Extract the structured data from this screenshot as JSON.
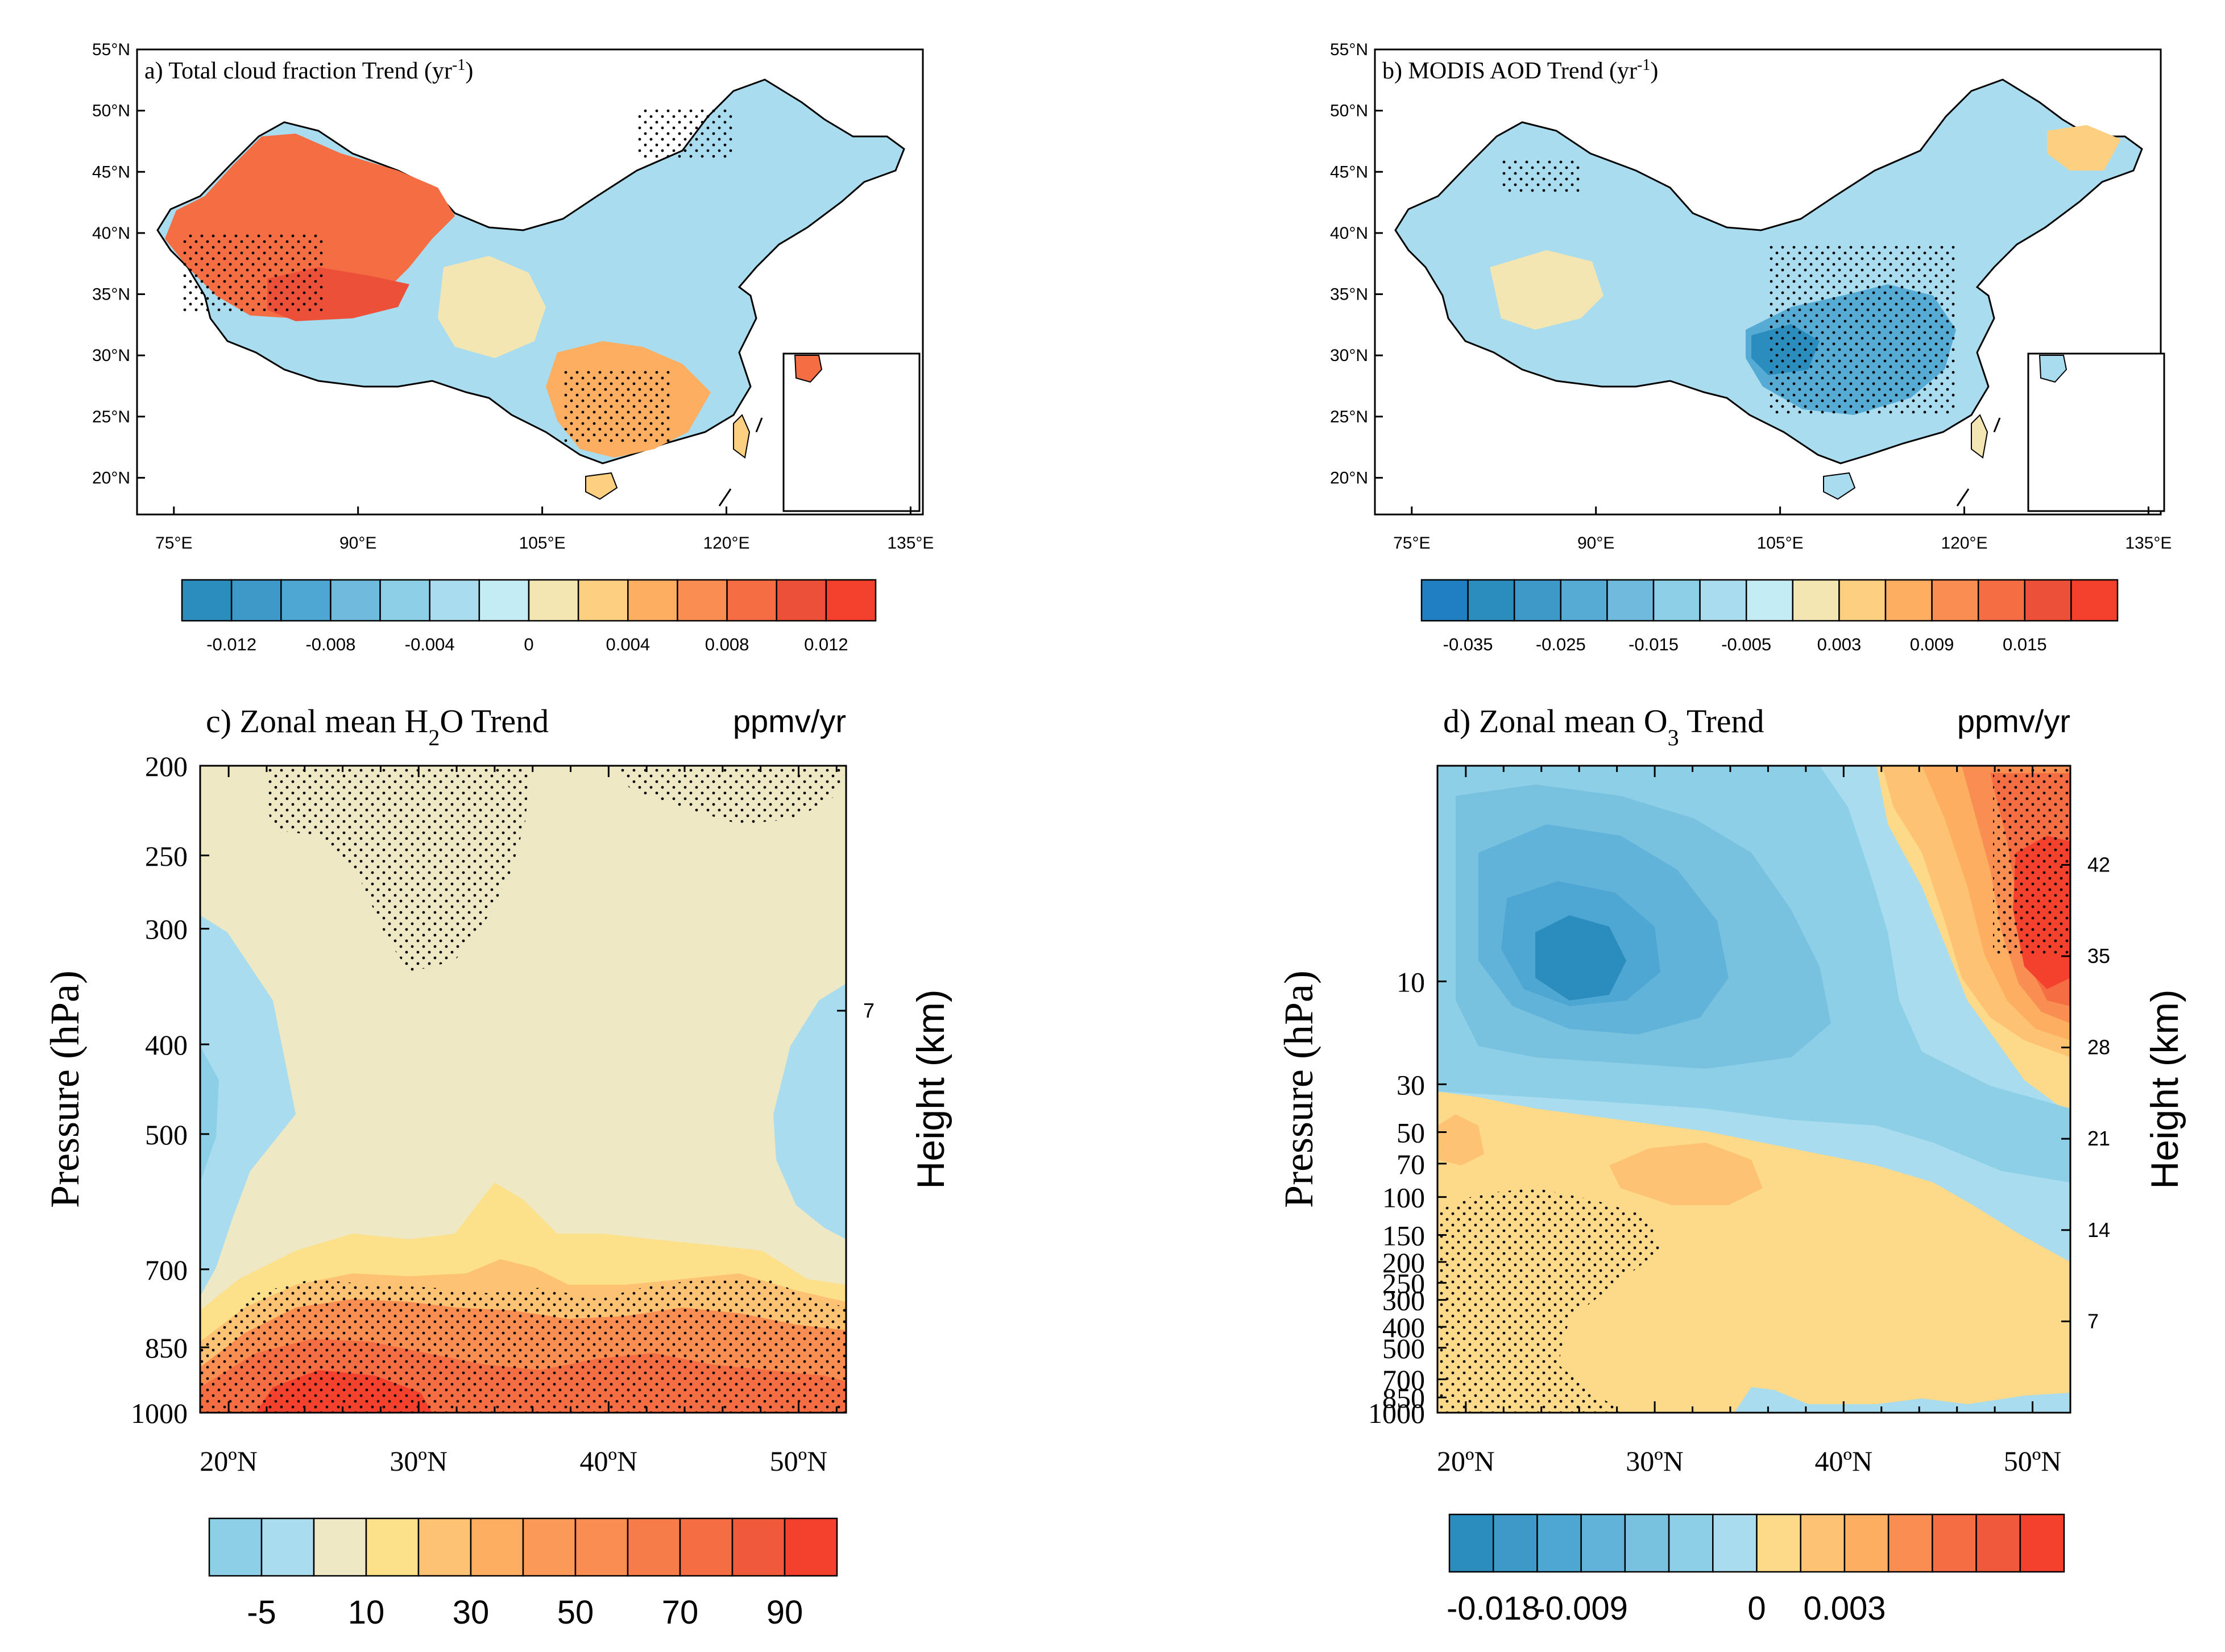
{
  "chart_data": [
    {
      "panel": "a",
      "type": "heatmap",
      "map": "China",
      "title": "a) Total cloud fraction Trend (yr",
      "title_sup": "-1",
      "title_end": ")",
      "x_ticks": [
        "75°E",
        "90°E",
        "105°E",
        "120°E",
        "135°E"
      ],
      "x_values": [
        75,
        90,
        105,
        120,
        135
      ],
      "y_ticks": [
        "55°N",
        "50°N",
        "45°N",
        "40°N",
        "35°N",
        "30°N",
        "25°N",
        "20°N"
      ],
      "y_values": [
        55,
        50,
        45,
        40,
        35,
        30,
        25,
        20
      ],
      "xlim": [
        72,
        136
      ],
      "ylim": [
        17,
        55
      ],
      "colorbar": {
        "colors": [
          "#2b8cbe",
          "#3c99c8",
          "#4ea7d2",
          "#70bbdd",
          "#8ccfe6",
          "#a8dcee",
          "#c4ecf4",
          "#f3e6b3",
          "#fdcf80",
          "#fdae61",
          "#f98e52",
          "#f46d43",
          "#ec5039",
          "#f4412d"
        ],
        "labels": [
          "-0.012",
          "-0.008",
          "-0.004",
          "0",
          "0.004",
          "0.008",
          "0.012"
        ],
        "boundaries": [
          -0.012,
          -0.01,
          -0.008,
          -0.006,
          -0.004,
          -0.002,
          0,
          0.002,
          0.004,
          0.006,
          0.008,
          0.01,
          0.012
        ]
      }
    },
    {
      "panel": "b",
      "type": "heatmap",
      "map": "China",
      "title": "b) MODIS AOD Trend (yr",
      "title_sup": "-1",
      "title_end": ")",
      "x_ticks": [
        "75°E",
        "90°E",
        "105°E",
        "120°E",
        "135°E"
      ],
      "x_values": [
        75,
        90,
        105,
        120,
        135
      ],
      "y_ticks": [
        "55°N",
        "50°N",
        "45°N",
        "40°N",
        "35°N",
        "30°N",
        "25°N",
        "20°N"
      ],
      "y_values": [
        55,
        50,
        45,
        40,
        35,
        30,
        25,
        20
      ],
      "xlim": [
        72,
        136
      ],
      "ylim": [
        17,
        55
      ],
      "colorbar": {
        "colors": [
          "#1f7fc1",
          "#2b8cbe",
          "#3c99c8",
          "#56abd4",
          "#70bbdd",
          "#8ccfe6",
          "#a8dcee",
          "#c4ecf4",
          "#f3e6b3",
          "#fdcf80",
          "#fdae61",
          "#f98e52",
          "#f46d43",
          "#ec5039",
          "#f4412d"
        ],
        "labels": [
          "-0.035",
          "-0.025",
          "-0.015",
          "-0.005",
          "0.003",
          "0.009",
          "0.015"
        ],
        "boundaries": [
          -0.035,
          -0.03,
          -0.025,
          -0.02,
          -0.015,
          -0.01,
          -0.005,
          0,
          0.003,
          0.006,
          0.009,
          0.012,
          0.015
        ]
      }
    },
    {
      "panel": "c",
      "type": "heatmap",
      "title": "c) Zonal mean H",
      "title_sub": "2",
      "title_end": "O Trend",
      "units": "ppmv/yr",
      "xlabel": "",
      "ylabel": "Pressure (hPa)",
      "ylabel_right": "Height (km)",
      "x_ticks": [
        "20ºN",
        "30ºN",
        "40ºN",
        "50ºN"
      ],
      "x_values": [
        20,
        30,
        40,
        50
      ],
      "xlim": [
        18.5,
        52.5
      ],
      "y_ticks": [
        "200",
        "250",
        "300",
        "400",
        "500",
        "700",
        "850",
        "1000"
      ],
      "y_values": [
        200,
        250,
        300,
        400,
        500,
        700,
        850,
        1000
      ],
      "ylim": [
        1000,
        200
      ],
      "right_ticks": [
        "7"
      ],
      "right_values": [
        7
      ],
      "colorbar": {
        "colors": [
          "#8ccfe6",
          "#a8dcee",
          "#efe8c4",
          "#fde08a",
          "#fdc372",
          "#fdae61",
          "#fb9a58",
          "#f98e52",
          "#f67d4a",
          "#f46d43",
          "#f05a3a",
          "#f4412d"
        ],
        "labels": [
          "-5",
          "10",
          "30",
          "50",
          "70",
          "90"
        ],
        "boundaries": [
          -5,
          0,
          10,
          20,
          30,
          40,
          50,
          60,
          70,
          80,
          90
        ]
      }
    },
    {
      "panel": "d",
      "type": "heatmap",
      "title": "d) Zonal mean O",
      "title_sub": "3",
      "title_end": " Trend",
      "units": "ppmv/yr",
      "xlabel": "",
      "ylabel": "Pressure (hPa)",
      "ylabel_right": "Height (km)",
      "x_ticks": [
        "20ºN",
        "30ºN",
        "40ºN",
        "50ºN"
      ],
      "x_values": [
        20,
        30,
        40,
        50
      ],
      "xlim": [
        18.5,
        52
      ],
      "y_ticks": [
        "10",
        "30",
        "50",
        "70",
        "100",
        "150",
        "200",
        "250",
        "300",
        "400",
        "500",
        "700",
        "850",
        "1000"
      ],
      "y_values": [
        10,
        30,
        50,
        70,
        100,
        150,
        200,
        250,
        300,
        400,
        500,
        700,
        850,
        1000
      ],
      "ylim": [
        1000,
        1
      ],
      "right_ticks": [
        "42",
        "35",
        "28",
        "21",
        "14",
        "7"
      ],
      "right_values": [
        42,
        35,
        28,
        21,
        14,
        7
      ],
      "colorbar": {
        "colors": [
          "#2b8cbe",
          "#3c99c8",
          "#4ea7d2",
          "#62b3d9",
          "#78c2e0",
          "#8ccfe6",
          "#a8dcee",
          "#fdd98a",
          "#fdc372",
          "#fdae61",
          "#f98e52",
          "#f46d43",
          "#f05a3a",
          "#f4412d"
        ],
        "labels": [
          "-0.018",
          "-0.009",
          "0",
          "0.003"
        ],
        "boundaries": [
          -0.018,
          -0.0135,
          -0.009,
          -0.0045,
          0,
          0.003
        ]
      }
    }
  ]
}
